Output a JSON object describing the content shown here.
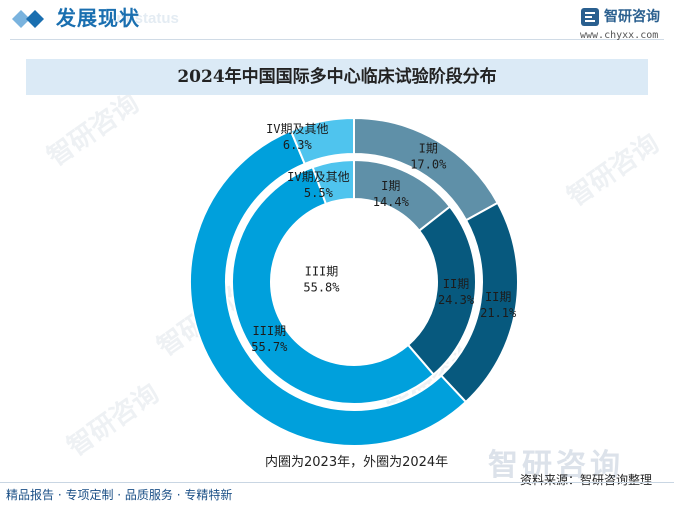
{
  "header": {
    "section_title": "发展现状",
    "section_subtitle": "ent status",
    "brand_name": "智研咨询",
    "brand_url": "www.chyxx.com"
  },
  "watermark": "智研咨询",
  "chart_data": {
    "type": "pie",
    "variant": "double-donut",
    "title": "2024年中国国际多中心临床试验阶段分布",
    "note": "内圈为2023年，外圈为2024年",
    "categories": [
      "I期",
      "II期",
      "III期",
      "IV期及其他"
    ],
    "series": [
      {
        "name": "2023年",
        "ring": "inner",
        "values": [
          14.4,
          24.3,
          55.8,
          5.5
        ]
      },
      {
        "name": "2024年",
        "ring": "outer",
        "values": [
          17.0,
          21.1,
          55.7,
          6.3
        ]
      }
    ],
    "colors": [
      "#5f90a8",
      "#07597e",
      "#00a0dc",
      "#4fc4ee"
    ],
    "value_suffix": "%"
  },
  "source": "资料来源：智研咨询整理",
  "footer": {
    "slogan": "精品报告 · 专项定制 · 品质服务 · 专精特新"
  }
}
